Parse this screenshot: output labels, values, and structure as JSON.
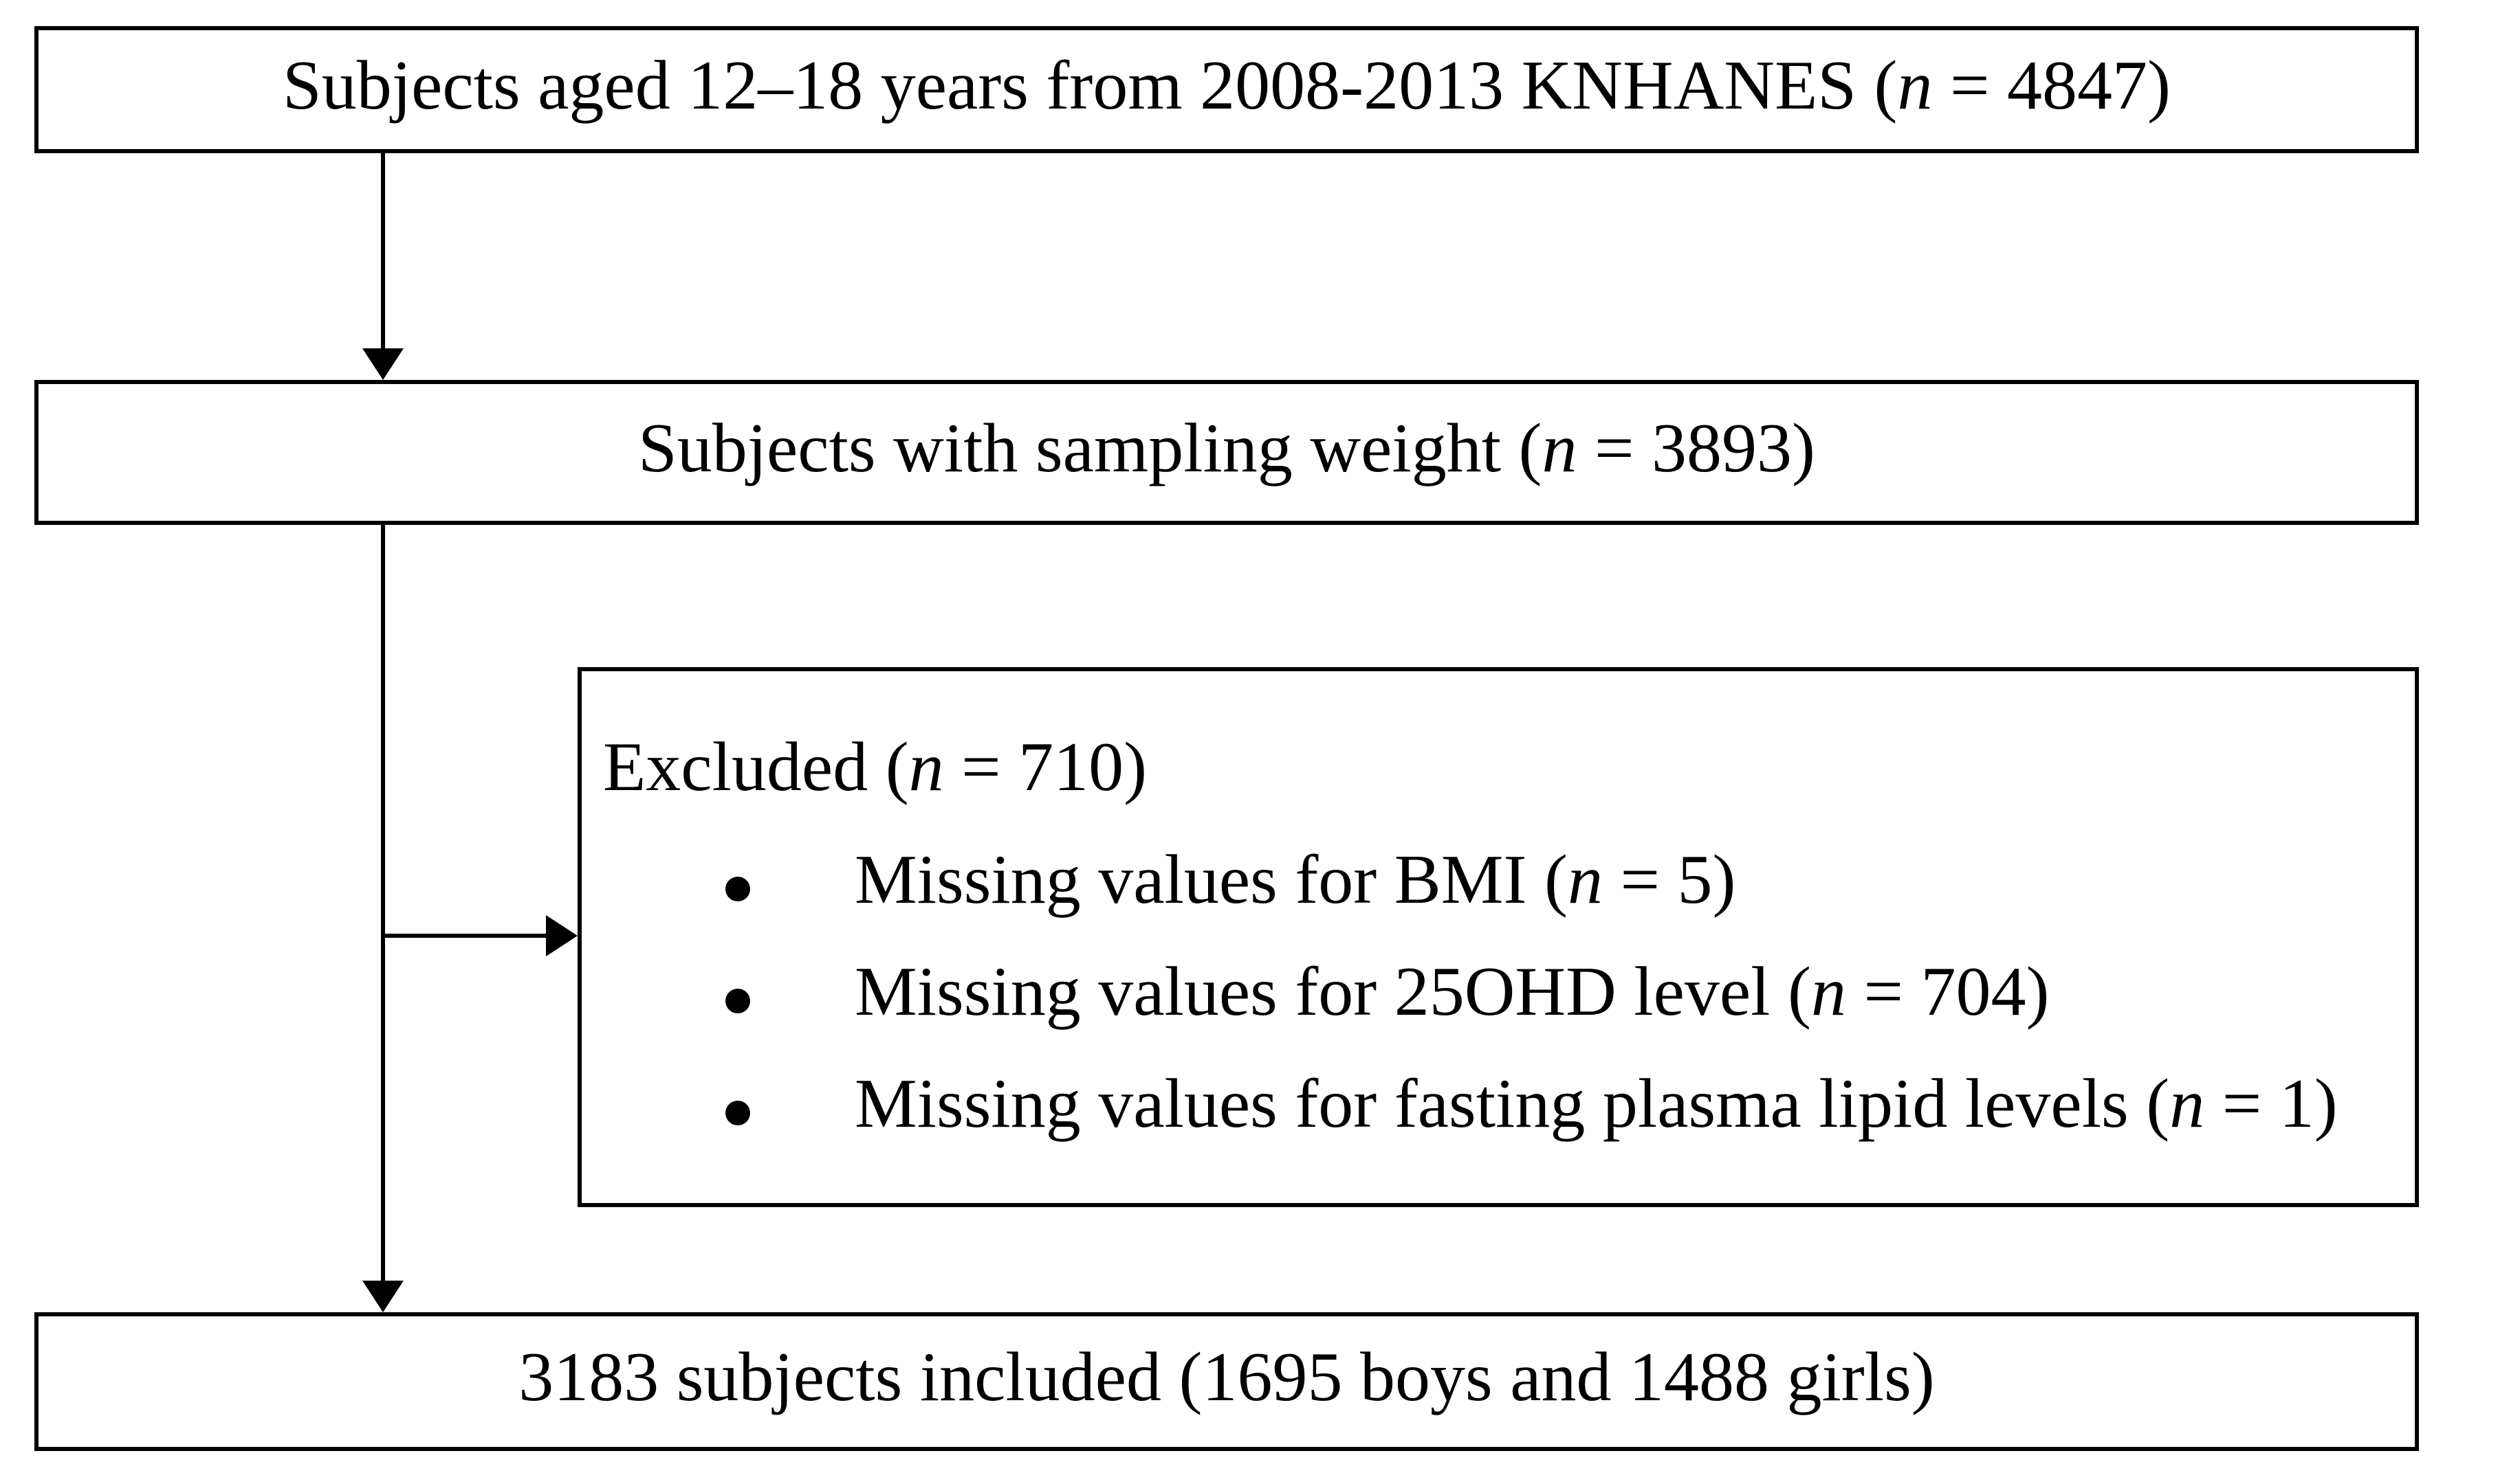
{
  "page": {
    "background": "#ffffff",
    "line_color": "#000000",
    "text_color": "#000000"
  },
  "flow": {
    "box_initial": "Subjects aged 12–18 years from 2008-2013 KNHANES (n = 4847)",
    "box_weighted": "Subjects with sampling weight (n = 3893)",
    "excluded": {
      "title": "Excluded (n = 710)",
      "items": [
        "Missing values for BMI (n = 5)",
        "Missing values for 25OHD level (n = 704)",
        "Missing values for fasting plasma lipid levels (n = 1)"
      ]
    },
    "box_included": "3183 subjects included (1695 boys and 1488 girls)"
  }
}
